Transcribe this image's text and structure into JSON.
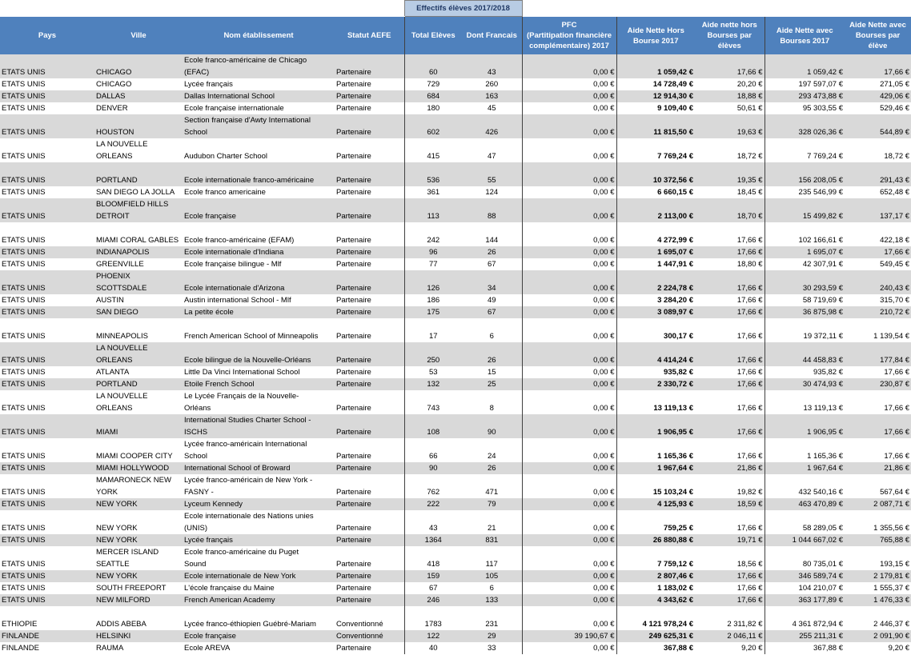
{
  "table": {
    "group_header": "Effectifs élèves 2017/2018",
    "columns": [
      "Pays",
      "Ville",
      "Nom établissement",
      "Statut AEFE",
      "Total Elèves",
      "Dont Francais",
      "PFC\n(Partitipation financière\ncomplémentaire) 2017",
      "Aide Nette Hors\nBourse 2017",
      "Aide nette hors\nBourses par\nélèves",
      "Aide Nette avec\nBourses 2017",
      "Aide Nette avec\nBourses par\nélève"
    ],
    "rows": [
      [
        "ETATS UNIS",
        "CHICAGO",
        "Ecole franco-américaine de Chicago\n(EFAC)",
        "Partenaire",
        "60",
        "43",
        "0,00 €",
        "1 059,42 €",
        "17,66 €",
        "1 059,42 €",
        "17,66 €"
      ],
      [
        "ETATS UNIS",
        "CHICAGO",
        "Lycée français",
        "Partenaire",
        "729",
        "260",
        "0,00 €",
        "14 728,49 €",
        "20,20 €",
        "197 597,07 €",
        "271,05 €"
      ],
      [
        "ETATS UNIS",
        "DALLAS",
        "Dallas International School",
        "Partenaire",
        "684",
        "163",
        "0,00 €",
        "12 914,30 €",
        "18,88 €",
        "293 473,88 €",
        "429,06 €"
      ],
      [
        "ETATS UNIS",
        "DENVER",
        "Ecole française internationale",
        "Partenaire",
        "180",
        "45",
        "0,00 €",
        "9 109,40 €",
        "50,61 €",
        "95 303,55 €",
        "529,46 €"
      ],
      [
        "ETATS UNIS",
        "HOUSTON",
        "Section française d'Awty International\nSchool",
        "Partenaire",
        "602",
        "426",
        "0,00 €",
        "11 815,50 €",
        "19,63 €",
        "328 026,36 €",
        "544,89 €"
      ],
      [
        "ETATS UNIS",
        "LA NOUVELLE\nORLEANS",
        "Audubon Charter School",
        "Partenaire",
        "415",
        "47",
        "0,00 €",
        "7 769,24 €",
        "18,72 €",
        "7 769,24 €",
        "18,72 €"
      ],
      [
        "ETATS UNIS",
        "PORTLAND",
        "Ecole internationale franco-américaine",
        "Partenaire",
        "536",
        "55",
        "0,00 €",
        "10 372,56 €",
        "19,35 €",
        "156 208,05 €",
        "291,43 €"
      ],
      [
        "ETATS UNIS",
        "SAN DIEGO  LA JOLLA",
        "Ecole franco americaine",
        "Partenaire",
        "361",
        "124",
        "0,00 €",
        "6 660,15 €",
        "18,45 €",
        "235 546,99 €",
        "652,48 €"
      ],
      [
        "ETATS UNIS",
        "BLOOMFIELD HILLS\nDETROIT",
        "Ecole française",
        "Partenaire",
        "113",
        "88",
        "0,00 €",
        "2 113,00 €",
        "18,70 €",
        "15 499,82 €",
        "137,17 €"
      ],
      [
        "ETATS UNIS",
        "MIAMI  CORAL GABLES",
        "Ecole franco-américaine (EFAM)",
        "Partenaire",
        "242",
        "144",
        "0,00 €",
        "4 272,99 €",
        "17,66 €",
        "102 166,61 €",
        "422,18 €"
      ],
      [
        "ETATS UNIS",
        "INDIANAPOLIS",
        "Ecole internationale d'Indiana",
        "Partenaire",
        "96",
        "26",
        "0,00 €",
        "1 695,07 €",
        "17,66 €",
        "1 695,07 €",
        "17,66 €"
      ],
      [
        "ETATS UNIS",
        "GREENVILLE",
        "Ecole française bilingue - Mlf",
        "Partenaire",
        "77",
        "67",
        "0,00 €",
        "1 447,91 €",
        "18,80 €",
        "42 307,91 €",
        "549,45 €"
      ],
      [
        "ETATS UNIS",
        "PHOENIX\nSCOTTSDALE",
        "Ecole internationale d'Arizona",
        "Partenaire",
        "126",
        "34",
        "0,00 €",
        "2 224,78 €",
        "17,66 €",
        "30 293,59 €",
        "240,43 €"
      ],
      [
        "ETATS UNIS",
        "AUSTIN",
        "Austin international School - Mlf",
        "Partenaire",
        "186",
        "49",
        "0,00 €",
        "3 284,20 €",
        "17,66 €",
        "58 719,69 €",
        "315,70 €"
      ],
      [
        "ETATS UNIS",
        "SAN DIEGO",
        "La petite école",
        "Partenaire",
        "175",
        "67",
        "0,00 €",
        "3 089,97 €",
        "17,66 €",
        "36 875,98 €",
        "210,72 €"
      ],
      [
        "ETATS UNIS",
        "MINNEAPOLIS",
        "French American School of Minneapolis",
        "Partenaire",
        "17",
        "6",
        "0,00 €",
        "300,17 €",
        "17,66 €",
        "19 372,11 €",
        "1 139,54 €"
      ],
      [
        "ETATS UNIS",
        "LA NOUVELLE\nORLEANS",
        "Ecole bilingue de la Nouvelle-Orléans",
        "Partenaire",
        "250",
        "26",
        "0,00 €",
        "4 414,24 €",
        "17,66 €",
        "44 458,83 €",
        "177,84 €"
      ],
      [
        "ETATS UNIS",
        "ATLANTA",
        "Little Da Vinci International School",
        "Partenaire",
        "53",
        "15",
        "0,00 €",
        "935,82 €",
        "17,66 €",
        "935,82 €",
        "17,66 €"
      ],
      [
        "ETATS UNIS",
        "PORTLAND",
        "Etoile French School",
        "Partenaire",
        "132",
        "25",
        "0,00 €",
        "2 330,72 €",
        "17,66 €",
        "30 474,93 €",
        "230,87 €"
      ],
      [
        "ETATS UNIS",
        "LA NOUVELLE\nORLEANS",
        "Le Lycée Français de la Nouvelle-\nOrléans",
        "Partenaire",
        "743",
        "8",
        "0,00 €",
        "13 119,13 €",
        "17,66 €",
        "13 119,13 €",
        "17,66 €"
      ],
      [
        "ETATS UNIS",
        "MIAMI",
        "International Studies Charter School -\nISCHS",
        "Partenaire",
        "108",
        "90",
        "0,00 €",
        "1 906,95 €",
        "17,66 €",
        "1 906,95 €",
        "17,66 €"
      ],
      [
        "ETATS UNIS",
        "MIAMI COOPER CITY",
        "Lycée franco-américain International\nSchool",
        "Partenaire",
        "66",
        "24",
        "0,00 €",
        "1 165,36 €",
        "17,66 €",
        "1 165,36 €",
        "17,66 €"
      ],
      [
        "ETATS UNIS",
        "MIAMI HOLLYWOOD",
        "International School of Broward",
        "Partenaire",
        "90",
        "26",
        "0,00 €",
        "1 967,64 €",
        "21,86 €",
        "1 967,64 €",
        "21,86 €"
      ],
      [
        "ETATS UNIS",
        "MAMARONECK  NEW\nYORK",
        "Lycée franco-américain de New York -\nFASNY -",
        "Partenaire",
        "762",
        "471",
        "0,00 €",
        "15 103,24 €",
        "19,82 €",
        "432 540,16 €",
        "567,64 €"
      ],
      [
        "ETATS UNIS",
        "NEW YORK",
        "Lyceum Kennedy",
        "Partenaire",
        "222",
        "79",
        "0,00 €",
        "4 125,93 €",
        "18,59 €",
        "463 470,89 €",
        "2 087,71 €"
      ],
      [
        "ETATS UNIS",
        "NEW YORK",
        "Ecole internationale des Nations unies\n(UNIS)",
        "Partenaire",
        "43",
        "21",
        "0,00 €",
        "759,25 €",
        "17,66 €",
        "58 289,05 €",
        "1 355,56 €"
      ],
      [
        "ETATS UNIS",
        "NEW YORK",
        "Lycée français",
        "Partenaire",
        "1364",
        "831",
        "0,00 €",
        "26 880,88 €",
        "19,71 €",
        "1 044 667,02 €",
        "765,88 €"
      ],
      [
        "ETATS UNIS",
        "MERCER ISLAND\nSEATTLE",
        "Ecole franco-américaine du Puget\nSound",
        "Partenaire",
        "418",
        "117",
        "0,00 €",
        "7 759,12 €",
        "18,56 €",
        "80 735,01 €",
        "193,15 €"
      ],
      [
        "ETATS UNIS",
        "NEW YORK",
        "Ecole internationale de New York",
        "Partenaire",
        "159",
        "105",
        "0,00 €",
        "2 807,46 €",
        "17,66 €",
        "346 589,74 €",
        "2 179,81 €"
      ],
      [
        "ETATS UNIS",
        "SOUTH FREEPORT",
        "L'école française du Maine",
        "Partenaire",
        "67",
        "6",
        "0,00 €",
        "1 183,02 €",
        "17,66 €",
        "104 210,07 €",
        "1 555,37 €"
      ],
      [
        "ETATS UNIS",
        "NEW MILFORD",
        "French American Academy",
        "Partenaire",
        "246",
        "133",
        "0,00 €",
        "4 343,62 €",
        "17,66 €",
        "363 177,89 €",
        "1 476,33 €"
      ],
      [
        "ETHIOPIE",
        "ADDIS ABEBA",
        "Lycée franco-éthiopien Guébré-Mariam",
        "Conventionné",
        "1783",
        "231",
        "0,00 €",
        "4 121 978,24 €",
        "2 311,82 €",
        "4 361 872,94 €",
        "2 446,37 €"
      ],
      [
        "FINLANDE",
        "HELSINKI",
        "Ecole française",
        "Conventionné",
        "122",
        "29",
        "39 190,67 €",
        "249 625,31 €",
        "2 046,11 €",
        "255 211,31 €",
        "2 091,90 €"
      ],
      [
        "FINLANDE",
        "RAUMA",
        "Ecole AREVA",
        "Partenaire",
        "40",
        "33",
        "0,00 €",
        "367,88 €",
        "9,20 €",
        "367,88 €",
        "9,20 €"
      ]
    ]
  }
}
